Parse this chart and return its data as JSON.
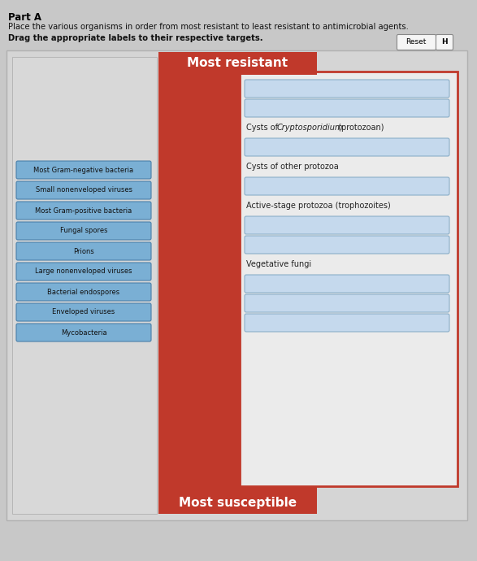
{
  "title_part_a": "Part A",
  "instruction1": "Place the various organisms in order from most resistant to least resistant to antimicrobial agents.",
  "instruction2": "Drag the appropriate labels to their respective targets.",
  "most_resistant_label": "Most resistant",
  "most_susceptible_label": "Most susceptible",
  "red_color": "#c0392b",
  "left_labels": [
    "Most Gram-negative bacteria",
    "Small nonenveloped viruses",
    "Most Gram-positive bacteria",
    "Fungal spores",
    "Prions",
    "Large nonenveloped viruses",
    "Bacterial endospores",
    "Enveloped viruses",
    "Mycobacteria"
  ],
  "right_items": [
    {
      "type": "slot"
    },
    {
      "type": "slot"
    },
    {
      "type": "text",
      "text": "Cysts of Cryptosporidium (protozoan)"
    },
    {
      "type": "slot"
    },
    {
      "type": "text",
      "text": "Cysts of other protozoa"
    },
    {
      "type": "slot"
    },
    {
      "type": "text",
      "text": "Active-stage protozoa (trophozoites)"
    },
    {
      "type": "slot"
    },
    {
      "type": "slot"
    },
    {
      "type": "text",
      "text": "Vegetative fungi"
    },
    {
      "type": "slot"
    },
    {
      "type": "slot"
    },
    {
      "type": "slot"
    }
  ],
  "slot_fill": "#c5d9ed",
  "slot_edge": "#8aaec8",
  "label_fill": "#7aafd4",
  "label_edge": "#4a80aa",
  "bg_outer": "#c8c8c8",
  "bg_panel": "#e0e0e0",
  "bg_right_content": "#ebebeb"
}
